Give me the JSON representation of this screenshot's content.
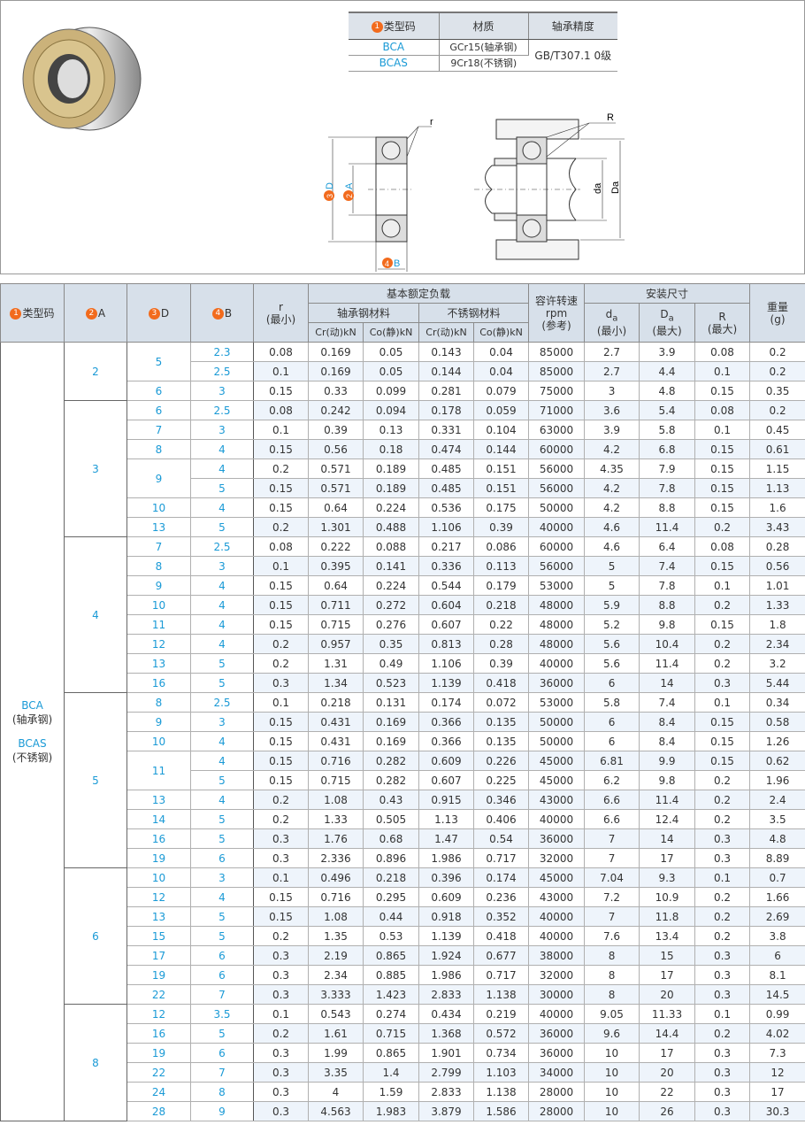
{
  "material_table": {
    "headers": [
      "类型码",
      "材质",
      "轴承精度"
    ],
    "header_badge": "1",
    "rows": [
      {
        "code": "BCA",
        "material": "GCr15(轴承钢)"
      },
      {
        "code": "BCAS",
        "material": "9Cr18(不锈钢)"
      }
    ],
    "precision": "GB/T307.1 0级"
  },
  "drawing": {
    "labels": {
      "r": "r",
      "R": "R",
      "D": "D",
      "A": "A",
      "B": "B",
      "da": "da",
      "Da": "Da"
    },
    "badges": {
      "D": "3",
      "A": "2",
      "B": "4"
    }
  },
  "main_table": {
    "headers": {
      "type_code": "类型码",
      "type_badge": "1",
      "A": "A",
      "A_badge": "2",
      "D": "D",
      "D_badge": "3",
      "B": "B",
      "B_badge": "4",
      "r": "r",
      "r_sub": "(最小)",
      "load": "基本额定负载",
      "steel": "轴承钢材料",
      "stainless": "不锈钢材料",
      "cr": "Cr(动)kN",
      "co": "Co(静)kN",
      "speed": "容许转速",
      "speed_unit": "rpm",
      "speed_sub": "(参考)",
      "install": "安装尺寸",
      "da": "d",
      "da_sub": "a",
      "da_note": "(最小)",
      "Da": "D",
      "Da_sub": "a",
      "Da_note": "(最大)",
      "R": "R",
      "R_note": "(最大)",
      "weight": "重量",
      "weight_unit": "(g)"
    },
    "type_cell": [
      "BCA",
      "(轴承钢)",
      "BCAS",
      "(不锈钢)"
    ],
    "rows": [
      [
        "2",
        "5",
        "2.3",
        "0.08",
        "0.169",
        "0.05",
        "0.143",
        "0.04",
        "85000",
        "2.7",
        "3.9",
        "0.08",
        "0.2"
      ],
      [
        "2",
        "5",
        "2.5",
        "0.1",
        "0.169",
        "0.05",
        "0.144",
        "0.04",
        "85000",
        "2.7",
        "4.4",
        "0.1",
        "0.2"
      ],
      [
        "2",
        "6",
        "3",
        "0.15",
        "0.33",
        "0.099",
        "0.281",
        "0.079",
        "75000",
        "3",
        "4.8",
        "0.15",
        "0.35"
      ],
      [
        "3",
        "6",
        "2.5",
        "0.08",
        "0.242",
        "0.094",
        "0.178",
        "0.059",
        "71000",
        "3.6",
        "5.4",
        "0.08",
        "0.2"
      ],
      [
        "3",
        "7",
        "3",
        "0.1",
        "0.39",
        "0.13",
        "0.331",
        "0.104",
        "63000",
        "3.9",
        "5.8",
        "0.1",
        "0.45"
      ],
      [
        "3",
        "8",
        "4",
        "0.15",
        "0.56",
        "0.18",
        "0.474",
        "0.144",
        "60000",
        "4.2",
        "6.8",
        "0.15",
        "0.61"
      ],
      [
        "3",
        "9",
        "4",
        "0.2",
        "0.571",
        "0.189",
        "0.485",
        "0.151",
        "56000",
        "4.35",
        "7.9",
        "0.15",
        "1.15"
      ],
      [
        "3",
        "9",
        "5",
        "0.15",
        "0.571",
        "0.189",
        "0.485",
        "0.151",
        "56000",
        "4.2",
        "7.8",
        "0.15",
        "1.13"
      ],
      [
        "3",
        "10",
        "4",
        "0.15",
        "0.64",
        "0.224",
        "0.536",
        "0.175",
        "50000",
        "4.2",
        "8.8",
        "0.15",
        "1.6"
      ],
      [
        "3",
        "13",
        "5",
        "0.2",
        "1.301",
        "0.488",
        "1.106",
        "0.39",
        "40000",
        "4.6",
        "11.4",
        "0.2",
        "3.43"
      ],
      [
        "4",
        "7",
        "2.5",
        "0.08",
        "0.222",
        "0.088",
        "0.217",
        "0.086",
        "60000",
        "4.6",
        "6.4",
        "0.08",
        "0.28"
      ],
      [
        "4",
        "8",
        "3",
        "0.1",
        "0.395",
        "0.141",
        "0.336",
        "0.113",
        "56000",
        "5",
        "7.4",
        "0.15",
        "0.56"
      ],
      [
        "4",
        "9",
        "4",
        "0.15",
        "0.64",
        "0.224",
        "0.544",
        "0.179",
        "53000",
        "5",
        "7.8",
        "0.1",
        "1.01"
      ],
      [
        "4",
        "10",
        "4",
        "0.15",
        "0.711",
        "0.272",
        "0.604",
        "0.218",
        "48000",
        "5.9",
        "8.8",
        "0.2",
        "1.33"
      ],
      [
        "4",
        "11",
        "4",
        "0.15",
        "0.715",
        "0.276",
        "0.607",
        "0.22",
        "48000",
        "5.2",
        "9.8",
        "0.15",
        "1.8"
      ],
      [
        "4",
        "12",
        "4",
        "0.2",
        "0.957",
        "0.35",
        "0.813",
        "0.28",
        "48000",
        "5.6",
        "10.4",
        "0.2",
        "2.34"
      ],
      [
        "4",
        "13",
        "5",
        "0.2",
        "1.31",
        "0.49",
        "1.106",
        "0.39",
        "40000",
        "5.6",
        "11.4",
        "0.2",
        "3.2"
      ],
      [
        "4",
        "16",
        "5",
        "0.3",
        "1.34",
        "0.523",
        "1.139",
        "0.418",
        "36000",
        "6",
        "14",
        "0.3",
        "5.44"
      ],
      [
        "5",
        "8",
        "2.5",
        "0.1",
        "0.218",
        "0.131",
        "0.174",
        "0.072",
        "53000",
        "5.8",
        "7.4",
        "0.1",
        "0.34"
      ],
      [
        "5",
        "9",
        "3",
        "0.15",
        "0.431",
        "0.169",
        "0.366",
        "0.135",
        "50000",
        "6",
        "8.4",
        "0.15",
        "0.58"
      ],
      [
        "5",
        "10",
        "4",
        "0.15",
        "0.431",
        "0.169",
        "0.366",
        "0.135",
        "50000",
        "6",
        "8.4",
        "0.15",
        "1.26"
      ],
      [
        "5",
        "11",
        "4",
        "0.15",
        "0.716",
        "0.282",
        "0.609",
        "0.226",
        "45000",
        "6.81",
        "9.9",
        "0.15",
        "0.62"
      ],
      [
        "5",
        "11",
        "5",
        "0.15",
        "0.715",
        "0.282",
        "0.607",
        "0.225",
        "45000",
        "6.2",
        "9.8",
        "0.2",
        "1.96"
      ],
      [
        "5",
        "13",
        "4",
        "0.2",
        "1.08",
        "0.43",
        "0.915",
        "0.346",
        "43000",
        "6.6",
        "11.4",
        "0.2",
        "2.4"
      ],
      [
        "5",
        "14",
        "5",
        "0.2",
        "1.33",
        "0.505",
        "1.13",
        "0.406",
        "40000",
        "6.6",
        "12.4",
        "0.2",
        "3.5"
      ],
      [
        "5",
        "16",
        "5",
        "0.3",
        "1.76",
        "0.68",
        "1.47",
        "0.54",
        "36000",
        "7",
        "14",
        "0.3",
        "4.8"
      ],
      [
        "5",
        "19",
        "6",
        "0.3",
        "2.336",
        "0.896",
        "1.986",
        "0.717",
        "32000",
        "7",
        "17",
        "0.3",
        "8.89"
      ],
      [
        "6",
        "10",
        "3",
        "0.1",
        "0.496",
        "0.218",
        "0.396",
        "0.174",
        "45000",
        "7.04",
        "9.3",
        "0.1",
        "0.7"
      ],
      [
        "6",
        "12",
        "4",
        "0.15",
        "0.716",
        "0.295",
        "0.609",
        "0.236",
        "43000",
        "7.2",
        "10.9",
        "0.2",
        "1.66"
      ],
      [
        "6",
        "13",
        "5",
        "0.15",
        "1.08",
        "0.44",
        "0.918",
        "0.352",
        "40000",
        "7",
        "11.8",
        "0.2",
        "2.69"
      ],
      [
        "6",
        "15",
        "5",
        "0.2",
        "1.35",
        "0.53",
        "1.139",
        "0.418",
        "40000",
        "7.6",
        "13.4",
        "0.2",
        "3.8"
      ],
      [
        "6",
        "17",
        "6",
        "0.3",
        "2.19",
        "0.865",
        "1.924",
        "0.677",
        "38000",
        "8",
        "15",
        "0.3",
        "6"
      ],
      [
        "6",
        "19",
        "6",
        "0.3",
        "2.34",
        "0.885",
        "1.986",
        "0.717",
        "32000",
        "8",
        "17",
        "0.3",
        "8.1"
      ],
      [
        "6",
        "22",
        "7",
        "0.3",
        "3.333",
        "1.423",
        "2.833",
        "1.138",
        "30000",
        "8",
        "20",
        "0.3",
        "14.5"
      ],
      [
        "8",
        "12",
        "3.5",
        "0.1",
        "0.543",
        "0.274",
        "0.434",
        "0.219",
        "40000",
        "9.05",
        "11.33",
        "0.1",
        "0.99"
      ],
      [
        "8",
        "16",
        "5",
        "0.2",
        "1.61",
        "0.715",
        "1.368",
        "0.572",
        "36000",
        "9.6",
        "14.4",
        "0.2",
        "4.02"
      ],
      [
        "8",
        "19",
        "6",
        "0.3",
        "1.99",
        "0.865",
        "1.901",
        "0.734",
        "36000",
        "10",
        "17",
        "0.3",
        "7.3"
      ],
      [
        "8",
        "22",
        "7",
        "0.3",
        "3.35",
        "1.4",
        "2.799",
        "1.103",
        "34000",
        "10",
        "20",
        "0.3",
        "12"
      ],
      [
        "8",
        "24",
        "8",
        "0.3",
        "4",
        "1.59",
        "2.833",
        "1.138",
        "28000",
        "10",
        "22",
        "0.3",
        "17"
      ],
      [
        "8",
        "28",
        "9",
        "0.3",
        "4.563",
        "1.983",
        "3.879",
        "1.586",
        "28000",
        "10",
        "26",
        "0.3",
        "30.3"
      ]
    ]
  },
  "colors": {
    "accent_blue": "#1a9ad6",
    "badge_orange": "#f26b1d",
    "header_bg": "#d7e0ea",
    "row_alt": "#eef4fb"
  }
}
